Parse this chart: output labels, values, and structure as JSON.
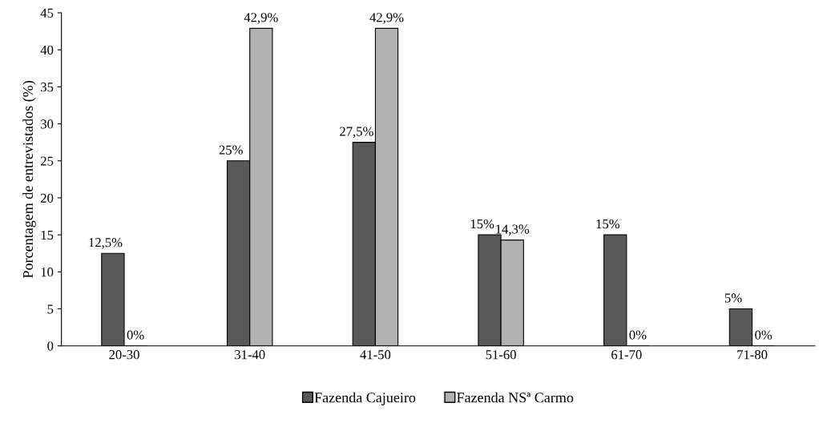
{
  "chart_data": {
    "type": "bar",
    "ylabel": "Porcentagem de entrevistados (%)",
    "categories": [
      "20-30",
      "31-40",
      "41-50",
      "51-60",
      "61-70",
      "71-80"
    ],
    "series": [
      {
        "name": "Fazenda Cajueiro",
        "color": "#595959",
        "values": [
          12.5,
          25,
          27.5,
          15,
          15,
          5
        ],
        "value_labels": [
          "12,5%",
          "25%",
          "27,5%",
          "15%",
          "15%",
          "5%"
        ]
      },
      {
        "name": "Fazenda NSª Carmo",
        "color": "#b2b2b2",
        "values": [
          0,
          42.9,
          42.9,
          14.3,
          0,
          0
        ],
        "value_labels": [
          "0%",
          "42,9%",
          "42,9%",
          "14,3%",
          "0%",
          "0%"
        ]
      }
    ],
    "ylim": [
      0,
      45
    ],
    "yticks": [
      0,
      5,
      10,
      15,
      20,
      25,
      30,
      35,
      40,
      45
    ],
    "grid": false,
    "legend": "bottom"
  }
}
